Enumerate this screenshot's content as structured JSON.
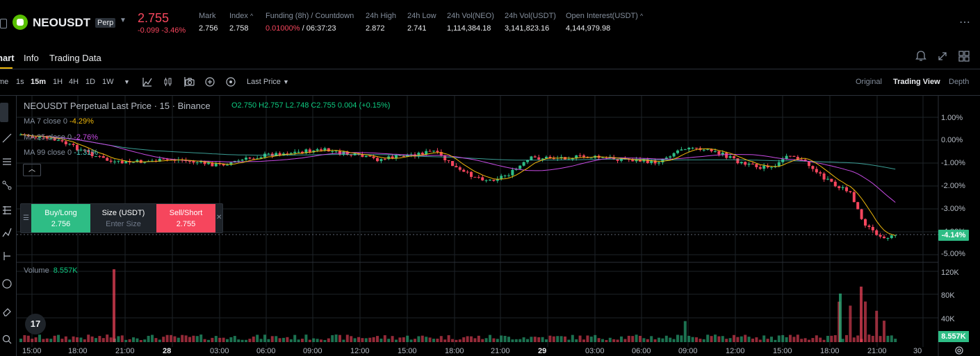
{
  "ticker": {
    "symbol": "NEOUSDT",
    "contract_type": "Perp",
    "last_price": "2.755",
    "change": "-0.099",
    "change_percent": "-3.46%",
    "stats": [
      {
        "label": "Mark",
        "value": "2.756"
      },
      {
        "label": "Index",
        "value": "2.758"
      },
      {
        "label": "Funding (8h) / Countdown",
        "value": "0.01000%",
        "value2": " / 06:37:23"
      },
      {
        "label": "24h High",
        "value": "2.872"
      },
      {
        "label": "24h Low",
        "value": "2.741"
      },
      {
        "label": "24h Vol(NEO)",
        "value": "1,114,384.18"
      },
      {
        "label": "24h Vol(USDT)",
        "value": "3,141,823.16"
      },
      {
        "label": "Open Interest(USDT)",
        "value": "4,144,979.98"
      }
    ]
  },
  "tabs": [
    {
      "label": "hart",
      "active": true
    },
    {
      "label": "Info",
      "active": false
    },
    {
      "label": "Trading Data",
      "active": false
    }
  ],
  "toolbar": {
    "time_label": "me",
    "intervals": [
      "1s",
      "15m",
      "1H",
      "4H",
      "1D",
      "1W"
    ],
    "active_interval": "15m",
    "price_type": "Last Price",
    "views": [
      "Original",
      "Trading View",
      "Depth"
    ],
    "active_view": "Trading View"
  },
  "chart": {
    "legend_title": "NEOUSDT Perpetual Last Price · 15 · Binance",
    "ohlc": "O2.750 H2.757 L2.748 C2.755 0.004 (+0.15%)",
    "ma": [
      {
        "label": "MA 7 close 0",
        "value": "-4.29%",
        "color": "#f0b90b"
      },
      {
        "label": "MA 25 close 0",
        "value": "-2.76%",
        "color": "#c94ce6"
      },
      {
        "label": "MA 99 close 0",
        "value": "-1.31%",
        "color": "#4dd0c4"
      }
    ],
    "ma_collapse_icon": "chevron-up-icon",
    "volume_label": "Volume",
    "volume_value": "8.557K",
    "price_axis": [
      "1.00%",
      "0.00%",
      "-1.00%",
      "-2.00%",
      "-3.00%",
      "-4.00%",
      "-5.00%"
    ],
    "current_pct": "-4.14%",
    "volume_axis": [
      "120K",
      "80K",
      "40K"
    ],
    "current_volume": "8.557K",
    "time_axis": [
      {
        "label": "15:00",
        "bold": false
      },
      {
        "label": "18:00",
        "bold": false
      },
      {
        "label": "21:00",
        "bold": false
      },
      {
        "label": "28",
        "bold": true
      },
      {
        "label": "03:00",
        "bold": false
      },
      {
        "label": "06:00",
        "bold": false
      },
      {
        "label": "09:00",
        "bold": false
      },
      {
        "label": "12:00",
        "bold": false
      },
      {
        "label": "15:00",
        "bold": false
      },
      {
        "label": "18:00",
        "bold": false
      },
      {
        "label": "21:00",
        "bold": false
      },
      {
        "label": "29",
        "bold": true
      },
      {
        "label": "03:00",
        "bold": false
      },
      {
        "label": "06:00",
        "bold": false
      },
      {
        "label": "09:00",
        "bold": false
      },
      {
        "label": "12:00",
        "bold": false
      },
      {
        "label": "15:00",
        "bold": false
      },
      {
        "label": "18:00",
        "bold": false
      },
      {
        "label": "21:00",
        "bold": false
      },
      {
        "label": "30",
        "bold": false
      }
    ],
    "colors": {
      "up": "#2ebd85",
      "down": "#f6465d"
    }
  },
  "order_panel": {
    "buy_label": "Buy/Long",
    "buy_price": "2.756",
    "size_label": "Size (USDT)",
    "size_placeholder": "Enter Size",
    "sell_label": "Sell/Short",
    "sell_price": "2.755"
  },
  "tv_logo": "17"
}
